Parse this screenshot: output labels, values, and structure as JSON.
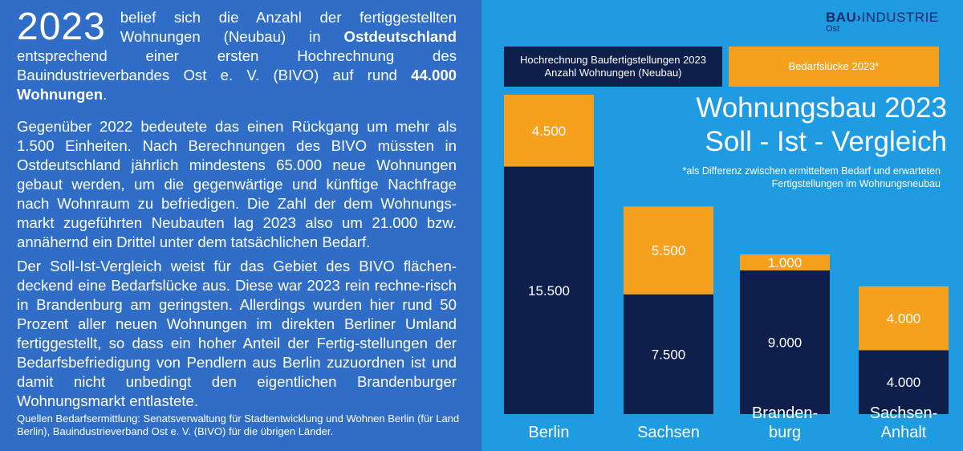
{
  "left": {
    "year": "2023",
    "p1_a": "belief sich die Anzahl der fertiggestellten Wohnungen (Neubau) in ",
    "p1_b": "Ostdeutschland",
    "p1_c": " entsprechend einer ersten Hochrechnung des Bauindustrieverbandes Ost e. V. (BIVO) auf rund ",
    "p1_d": "44.000 Wohnungen",
    "p1_e": ".",
    "p2": "Gegenüber 2022 bedeutete das einen Rückgang um mehr als 1.500 Einheiten. Nach Berechnungen des BIVO müssten in Ostdeutschland jährlich mindestens 65.000 neue Wohnungen gebaut werden, um die gegenwärtige und künftige Nachfrage nach Wohnraum zu befriedigen. Die Zahl der dem Wohnungs-markt zugeführten Neubauten lag 2023 also um 21.000 bzw. annähernd ein Drittel unter dem tatsächlichen Bedarf.",
    "p3": "Der Soll-Ist-Vergleich weist für das Gebiet des BIVO flächen-deckend eine Bedarfslücke aus. Diese war 2023 rein rechne-risch in Brandenburg am geringsten. Allerdings wurden hier rund 50 Prozent aller neuen Wohnungen im direkten Berliner Umland fertiggestellt, so dass ein hoher Anteil der Fertig-stellungen der Bedarfsbefriedigung von Pendlern aus Berlin zuzuordnen ist und damit nicht unbedingt den eigentlichen Brandenburger Wohnungsmarkt entlastete.",
    "source": "Quellen Bedarfsermittlung: Senatsverwaltung für Stadtentwicklung und Wohnen Berlin (für Land Berlin), Bauindustrieverband Ost e. V. (BIVO) für die übrigen Länder."
  },
  "logo": {
    "bold": "BAU",
    "arrow": "›",
    "rest": "INDUSTRIE",
    "sub": "Ost"
  },
  "colors": {
    "navy": "#0e1f4c",
    "orange": "#f5a11d",
    "left_bg": "#2f6dc6",
    "right_bg": "#1f9be2"
  },
  "chart_data": {
    "type": "bar",
    "stacked": true,
    "title": "Wohnungsbau 2023",
    "subtitle": "Soll - Ist - Vergleich",
    "note": "*als Differenz zwischen ermitteltem Bedarf und erwarteten Fertigstellungen im Wohnungsneubau",
    "categories": [
      "Berlin",
      "Sachsen",
      "Branden-burg",
      "Sachsen-Anhalt"
    ],
    "category_lines": [
      [
        "Berlin"
      ],
      [
        "Sachsen"
      ],
      [
        "Branden-",
        "burg"
      ],
      [
        "Sachsen-",
        "Anhalt"
      ]
    ],
    "series": [
      {
        "name": "Hochrechnung Baufertigstellungen 2023 Anzahl Wohnungen (Neubau)",
        "name_lines": [
          "Hochrechnung Baufertigstellungen 2023",
          "Anzahl Wohnungen (Neubau)"
        ],
        "color": "#0e1f4c",
        "values": [
          15500,
          7500,
          9000,
          4000
        ],
        "labels": [
          "15.500",
          "7.500",
          "9.000",
          "4.000"
        ]
      },
      {
        "name": "Bedarfslücke 2023*",
        "color": "#f5a11d",
        "values": [
          4500,
          5500,
          1000,
          4000
        ],
        "labels": [
          "4.500",
          "5.500",
          "1.000",
          "4.000"
        ]
      }
    ],
    "ylim": [
      0,
      20000
    ],
    "legend": "top"
  }
}
